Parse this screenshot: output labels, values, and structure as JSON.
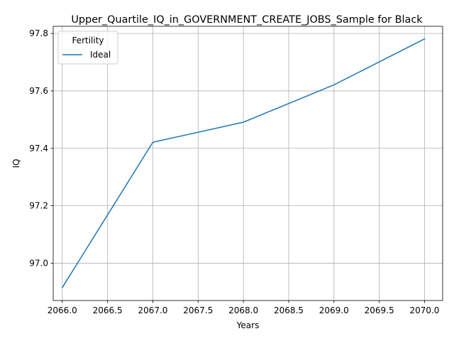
{
  "chart_data": {
    "type": "line",
    "title": "Upper_Quartile_IQ_in_GOVERNMENT_CREATE_JOBS_Sample for Black",
    "xlabel": "Years",
    "ylabel": "IQ",
    "xlim": [
      2065.9,
      2070.2
    ],
    "ylim": [
      96.87,
      97.825
    ],
    "xticks": [
      2066.0,
      2066.5,
      2067.0,
      2067.5,
      2068.0,
      2068.5,
      2069.0,
      2069.5,
      2070.0
    ],
    "xtick_labels": [
      "2066.0",
      "2066.5",
      "2067.0",
      "2067.5",
      "2068.0",
      "2068.5",
      "2069.0",
      "2069.5",
      "2070.0"
    ],
    "yticks": [
      97.0,
      97.2,
      97.4,
      97.6,
      97.8
    ],
    "ytick_labels": [
      "97.0",
      "97.2",
      "97.4",
      "97.6",
      "97.8"
    ],
    "grid": true,
    "legend": {
      "title": "Fertility",
      "placement": "top-left"
    },
    "series": [
      {
        "name": "Ideal",
        "color": "#1f77b4",
        "x": [
          2066,
          2067,
          2068,
          2069,
          2070
        ],
        "y": [
          96.915,
          97.421,
          97.491,
          97.621,
          97.781
        ]
      }
    ]
  }
}
